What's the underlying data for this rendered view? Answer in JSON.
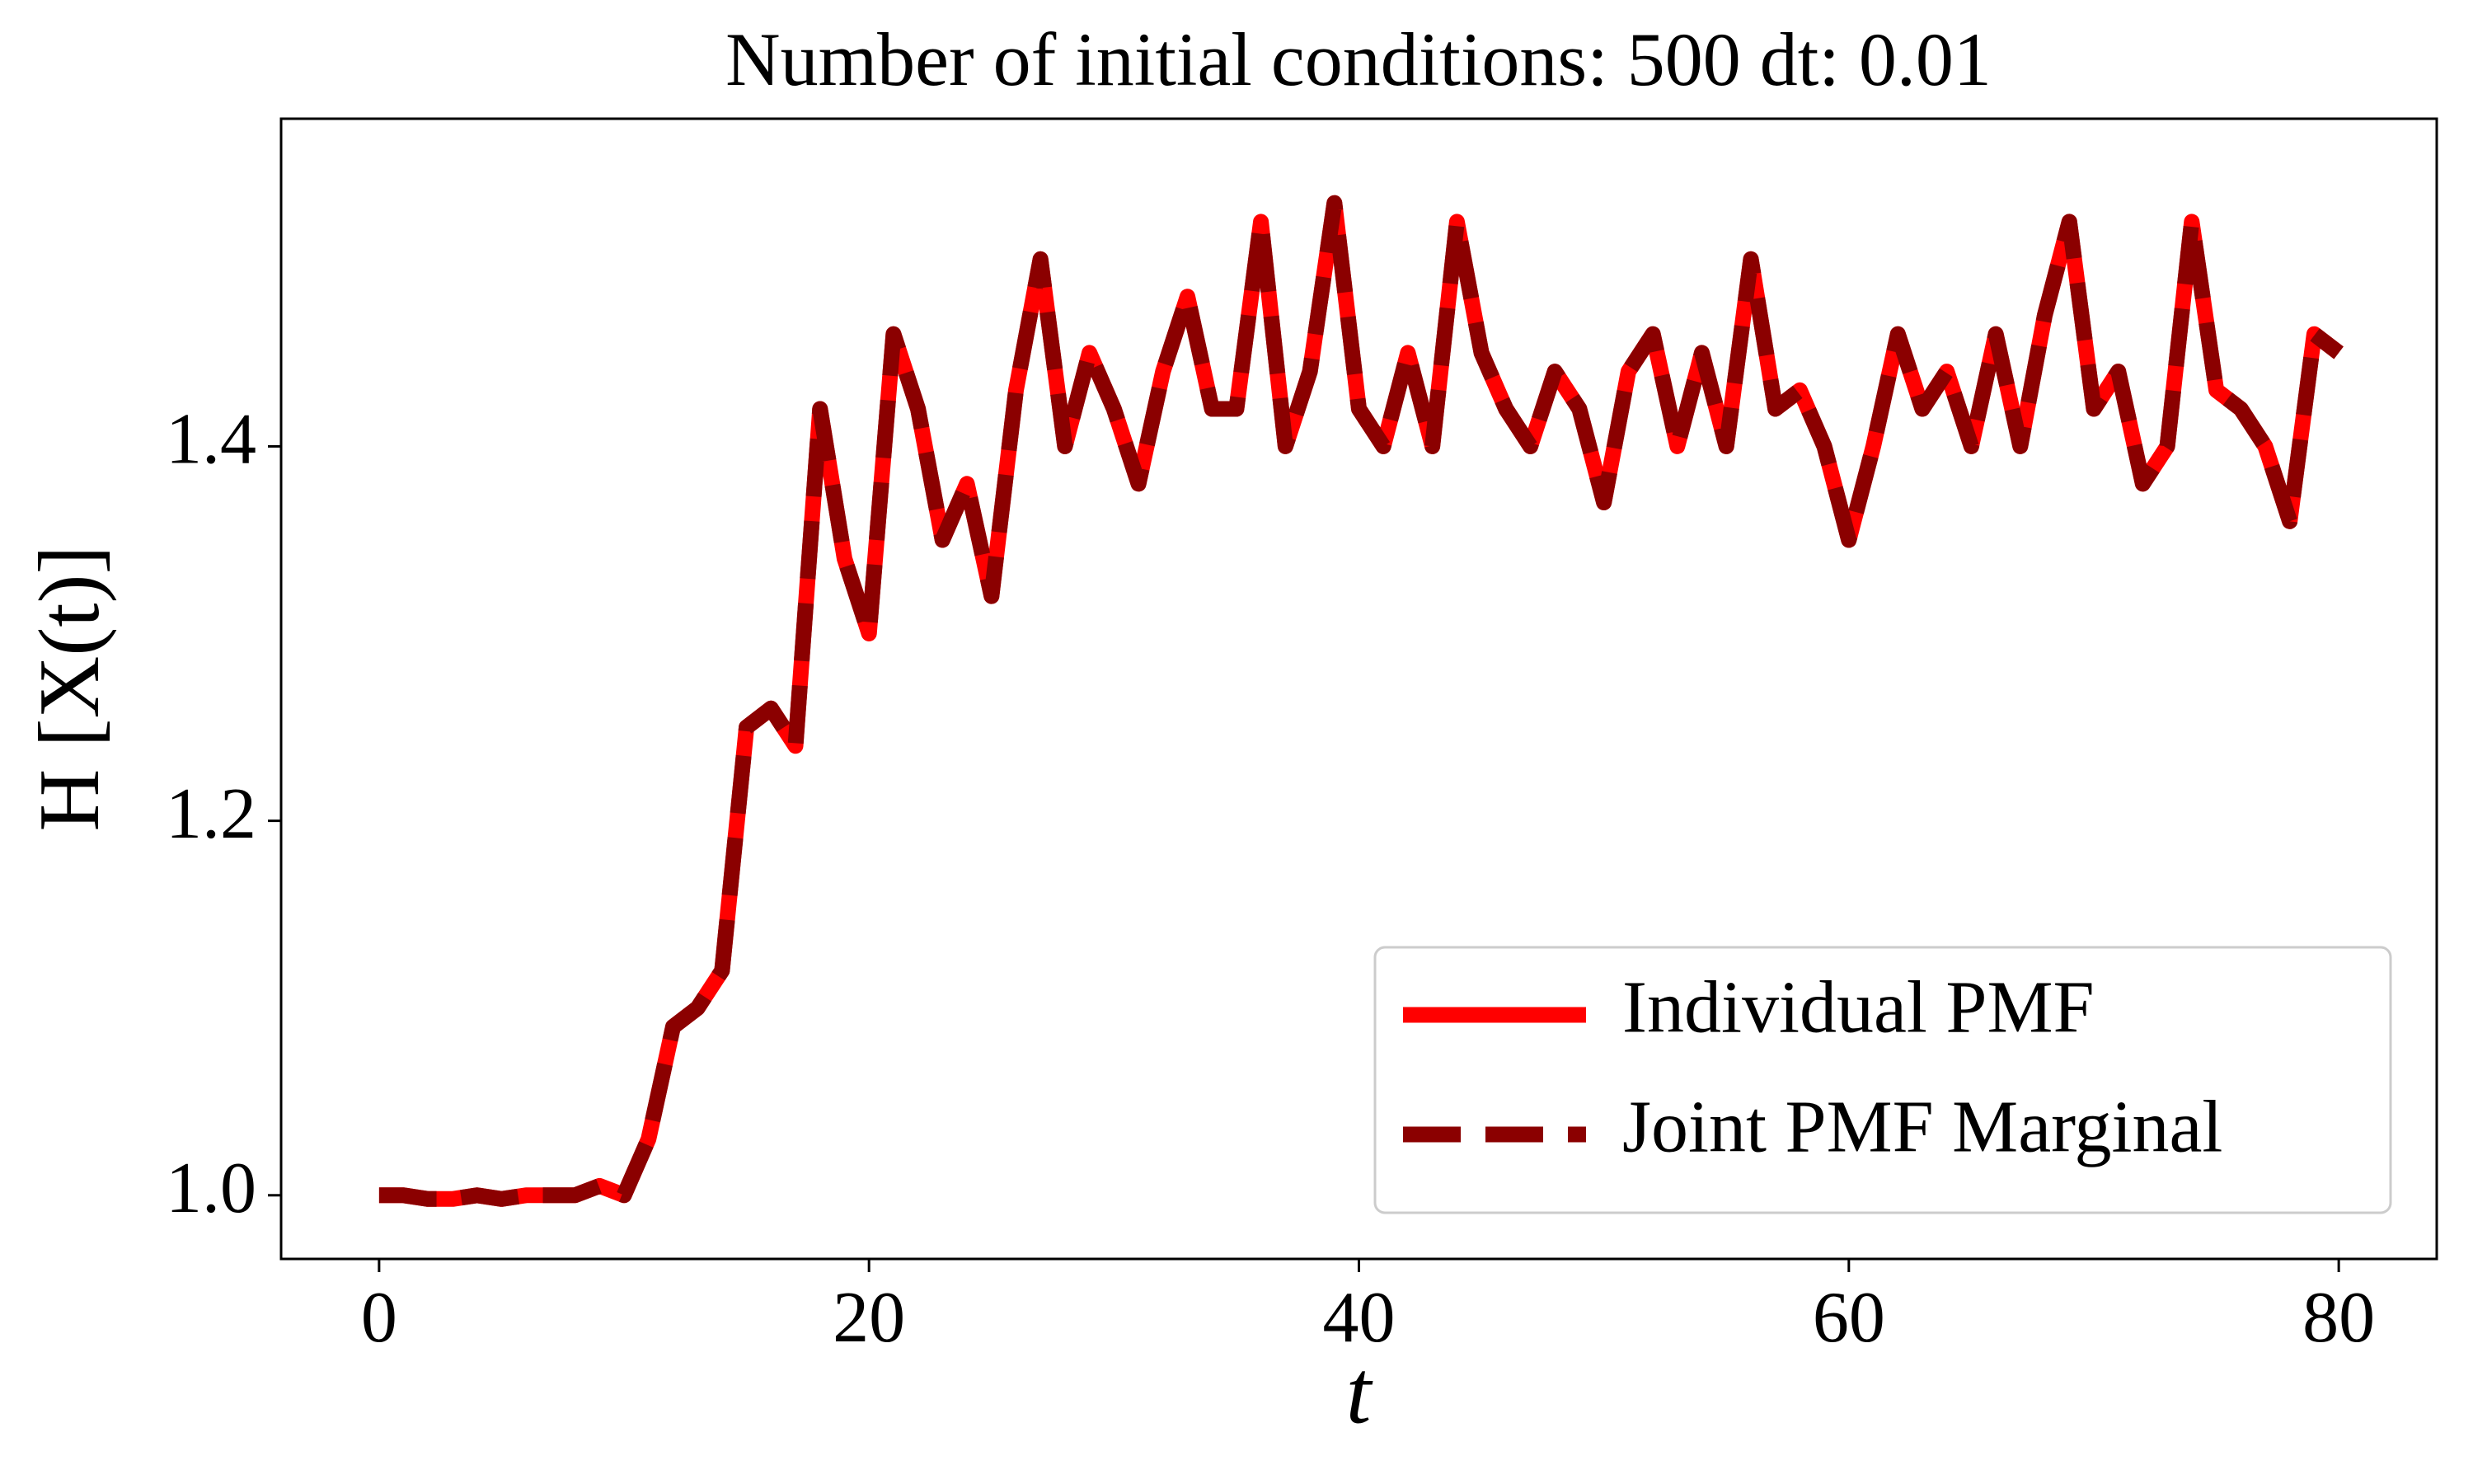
{
  "chart_data": {
    "type": "line",
    "title": "Number of initial conditions: 500 dt: 0.01",
    "xlabel": "t",
    "ylabel": "H [X(t)]",
    "x": [
      0,
      1,
      2,
      3,
      4,
      5,
      6,
      7,
      8,
      9,
      10,
      11,
      12,
      13,
      14,
      15,
      16,
      17,
      18,
      19,
      20,
      21,
      22,
      23,
      24,
      25,
      26,
      27,
      28,
      29,
      30,
      31,
      32,
      33,
      34,
      35,
      36,
      37,
      38,
      39,
      40,
      41,
      42,
      43,
      44,
      45,
      46,
      47,
      48,
      49,
      50,
      51,
      52,
      53,
      54,
      55,
      56,
      57,
      58,
      59,
      60,
      61,
      62,
      63,
      64,
      65,
      66,
      67,
      68,
      69,
      70,
      71,
      72,
      73,
      74,
      75,
      76,
      77,
      78,
      79,
      80
    ],
    "series": [
      {
        "name": "Individual PMF",
        "color": "#ff0000",
        "dash": false,
        "values": [
          1.0,
          1.0,
          0.998,
          0.998,
          1.0,
          0.998,
          1.0,
          1.0,
          1.0,
          1.005,
          1.0,
          1.03,
          1.09,
          1.1,
          1.12,
          1.25,
          1.26,
          1.24,
          1.42,
          1.34,
          1.3,
          1.46,
          1.42,
          1.35,
          1.38,
          1.32,
          1.43,
          1.5,
          1.4,
          1.45,
          1.42,
          1.38,
          1.44,
          1.48,
          1.42,
          1.42,
          1.52,
          1.4,
          1.44,
          1.53,
          1.42,
          1.4,
          1.45,
          1.4,
          1.52,
          1.45,
          1.42,
          1.4,
          1.44,
          1.42,
          1.37,
          1.44,
          1.46,
          1.4,
          1.45,
          1.4,
          1.5,
          1.42,
          1.43,
          1.4,
          1.35,
          1.4,
          1.46,
          1.42,
          1.44,
          1.4,
          1.46,
          1.4,
          1.47,
          1.52,
          1.42,
          1.44,
          1.38,
          1.4,
          1.52,
          1.43,
          1.42,
          1.4,
          1.36,
          1.46,
          1.45
        ]
      },
      {
        "name": "Joint PMF Marginal",
        "color": "#8b0000",
        "dash": true,
        "values": [
          1.0,
          1.0,
          0.998,
          0.998,
          1.0,
          0.998,
          1.0,
          1.0,
          1.0,
          1.005,
          1.0,
          1.03,
          1.09,
          1.1,
          1.12,
          1.25,
          1.26,
          1.24,
          1.42,
          1.34,
          1.3,
          1.46,
          1.42,
          1.35,
          1.38,
          1.32,
          1.43,
          1.5,
          1.4,
          1.45,
          1.42,
          1.38,
          1.44,
          1.48,
          1.42,
          1.42,
          1.52,
          1.4,
          1.44,
          1.53,
          1.42,
          1.4,
          1.45,
          1.4,
          1.52,
          1.45,
          1.42,
          1.4,
          1.44,
          1.42,
          1.37,
          1.44,
          1.46,
          1.4,
          1.45,
          1.4,
          1.5,
          1.42,
          1.43,
          1.4,
          1.35,
          1.4,
          1.46,
          1.42,
          1.44,
          1.4,
          1.46,
          1.4,
          1.47,
          1.52,
          1.42,
          1.44,
          1.38,
          1.4,
          1.52,
          1.43,
          1.42,
          1.4,
          1.36,
          1.46,
          1.45
        ]
      }
    ],
    "xlim": [
      -4,
      84
    ],
    "ylim": [
      0.966,
      1.575
    ],
    "xticks": [
      0,
      20,
      40,
      60,
      80
    ],
    "yticks": [
      {
        "value": 1,
        "label": "1.0"
      },
      1.2,
      1.4
    ],
    "grid": false,
    "legend": "lower right"
  }
}
